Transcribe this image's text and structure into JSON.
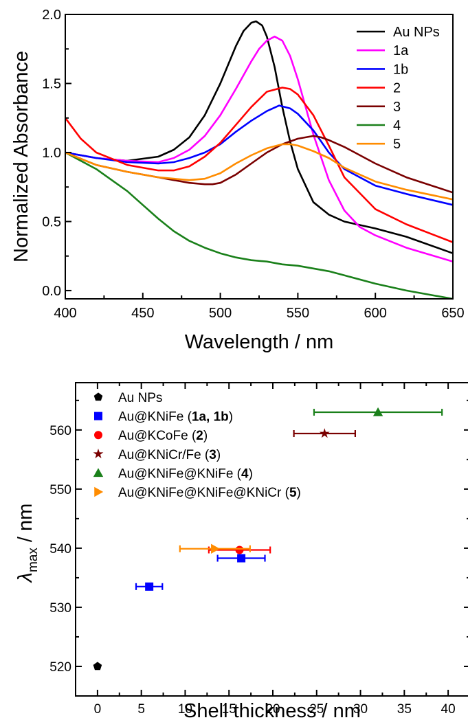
{
  "chart_data": [
    {
      "type": "line",
      "xlabel": "Wavelength / nm",
      "ylabel": "Normalized Absorbance",
      "xlim": [
        400,
        650
      ],
      "ylim": [
        -0.06,
        2.0
      ],
      "xticks": [
        "400",
        "450",
        "500",
        "550",
        "600",
        "650"
      ],
      "yticks": [
        "0.0",
        "0.5",
        "1.0",
        "1.5",
        "2.0"
      ],
      "legend_position": "top-right",
      "series": [
        {
          "name": "Au NPs",
          "color": "#000000",
          "x": [
            400,
            420,
            440,
            460,
            470,
            480,
            490,
            500,
            510,
            515,
            520,
            523,
            527,
            530,
            535,
            540,
            545,
            550,
            560,
            570,
            580,
            600,
            620,
            650
          ],
          "y": [
            1.0,
            0.96,
            0.94,
            0.97,
            1.02,
            1.11,
            1.27,
            1.5,
            1.77,
            1.88,
            1.94,
            1.95,
            1.92,
            1.84,
            1.62,
            1.33,
            1.08,
            0.88,
            0.64,
            0.55,
            0.5,
            0.45,
            0.39,
            0.27
          ]
        },
        {
          "name": "1a",
          "color": "#ff00ff",
          "x": [
            400,
            420,
            440,
            460,
            470,
            480,
            490,
            500,
            510,
            520,
            525,
            530,
            535,
            540,
            545,
            550,
            560,
            570,
            580,
            590,
            600,
            620,
            650
          ],
          "y": [
            1.0,
            0.96,
            0.94,
            0.93,
            0.96,
            1.02,
            1.12,
            1.27,
            1.46,
            1.66,
            1.75,
            1.81,
            1.84,
            1.81,
            1.7,
            1.53,
            1.13,
            0.8,
            0.58,
            0.46,
            0.4,
            0.31,
            0.21
          ]
        },
        {
          "name": "1b",
          "color": "#0000ff",
          "x": [
            400,
            420,
            440,
            460,
            470,
            480,
            490,
            500,
            510,
            520,
            530,
            538,
            545,
            550,
            560,
            570,
            580,
            600,
            620,
            650
          ],
          "y": [
            1.0,
            0.96,
            0.93,
            0.92,
            0.93,
            0.96,
            1.0,
            1.06,
            1.15,
            1.23,
            1.3,
            1.34,
            1.32,
            1.28,
            1.16,
            1.0,
            0.88,
            0.76,
            0.7,
            0.62
          ]
        },
        {
          "name": "2",
          "color": "#ff0000",
          "x": [
            400,
            410,
            420,
            440,
            460,
            470,
            480,
            490,
            500,
            510,
            520,
            530,
            540,
            545,
            550,
            560,
            570,
            580,
            600,
            620,
            650
          ],
          "y": [
            1.25,
            1.1,
            1.0,
            0.91,
            0.87,
            0.87,
            0.9,
            0.97,
            1.07,
            1.2,
            1.33,
            1.44,
            1.47,
            1.46,
            1.42,
            1.27,
            1.05,
            0.82,
            0.59,
            0.48,
            0.35
          ]
        },
        {
          "name": "3",
          "color": "#7a0000",
          "x": [
            400,
            420,
            440,
            460,
            480,
            490,
            495,
            500,
            510,
            520,
            530,
            540,
            550,
            560,
            565,
            570,
            580,
            600,
            620,
            650
          ],
          "y": [
            1.0,
            0.91,
            0.86,
            0.82,
            0.78,
            0.77,
            0.77,
            0.78,
            0.84,
            0.92,
            1.0,
            1.06,
            1.1,
            1.12,
            1.11,
            1.09,
            1.04,
            0.92,
            0.82,
            0.71
          ]
        },
        {
          "name": "4",
          "color": "#1a801a",
          "x": [
            400,
            420,
            440,
            450,
            460,
            470,
            480,
            490,
            500,
            510,
            520,
            530,
            540,
            550,
            560,
            570,
            580,
            600,
            620,
            650
          ],
          "y": [
            1.0,
            0.88,
            0.72,
            0.62,
            0.52,
            0.43,
            0.36,
            0.31,
            0.27,
            0.24,
            0.22,
            0.21,
            0.19,
            0.18,
            0.16,
            0.14,
            0.11,
            0.05,
            0.0,
            -0.06
          ]
        },
        {
          "name": "5",
          "color": "#ff8c00",
          "x": [
            400,
            420,
            440,
            460,
            480,
            490,
            500,
            510,
            520,
            530,
            540,
            545,
            550,
            560,
            570,
            580,
            600,
            620,
            650
          ],
          "y": [
            1.0,
            0.91,
            0.86,
            0.82,
            0.8,
            0.81,
            0.85,
            0.92,
            0.98,
            1.03,
            1.06,
            1.06,
            1.05,
            1.01,
            0.96,
            0.89,
            0.79,
            0.73,
            0.66
          ]
        }
      ]
    },
    {
      "type": "scatter",
      "xlabel": "Shell thickness / nm",
      "ylabel_main": "λ",
      "ylabel_sub": "max",
      "ylabel_suffix": " / nm",
      "xlim": [
        -2.5,
        42.5
      ],
      "ylim": [
        515,
        568
      ],
      "xticks": [
        "0",
        "5",
        "10",
        "15",
        "20",
        "25",
        "30",
        "35",
        "40"
      ],
      "yticks": [
        "520",
        "530",
        "540",
        "550",
        "560"
      ],
      "legend_position": "top-left",
      "legend": [
        {
          "name": "Au NPs",
          "bold": "",
          "post": "",
          "marker": "pentagon",
          "color": "#000000"
        },
        {
          "name": "Au@KNiFe (",
          "bold": "1a, 1b",
          "post": ")",
          "marker": "square",
          "color": "#0000ff"
        },
        {
          "name": "Au@KCoFe (",
          "bold": "2",
          "post": ")",
          "marker": "circle",
          "color": "#ff0000"
        },
        {
          "name": "Au@KNiCr/Fe (",
          "bold": "3",
          "post": ")",
          "marker": "star",
          "color": "#7a0000"
        },
        {
          "name": "Au@KNiFe@KNiFe (",
          "bold": "4",
          "post": ")",
          "marker": "triangle-up",
          "color": "#1a801a"
        },
        {
          "name": "Au@KNiFe@KNiFe@KNiCr (",
          "bold": "5",
          "post": ")",
          "marker": "triangle-right",
          "color": "#ff8c00"
        }
      ],
      "points": [
        {
          "series": "Au NPs",
          "x": 0,
          "y": 520,
          "xerr": 0,
          "marker": "pentagon",
          "color": "#000000"
        },
        {
          "series": "1a",
          "x": 5.9,
          "y": 533.5,
          "xerr": 1.5,
          "marker": "square",
          "color": "#0000ff"
        },
        {
          "series": "1b",
          "x": 16.4,
          "y": 538.3,
          "xerr": 2.7,
          "marker": "square",
          "color": "#0000ff"
        },
        {
          "series": "2",
          "x": 16.2,
          "y": 539.7,
          "xerr": 3.5,
          "marker": "circle",
          "color": "#ff0000"
        },
        {
          "series": "5",
          "x": 13.4,
          "y": 539.9,
          "xerr": 4.0,
          "marker": "triangle-right",
          "color": "#ff8c00"
        },
        {
          "series": "3",
          "x": 25.9,
          "y": 559.4,
          "xerr": 3.5,
          "marker": "star",
          "color": "#7a0000"
        },
        {
          "series": "4",
          "x": 32.0,
          "y": 563.0,
          "xerr": 7.3,
          "marker": "triangle-up",
          "color": "#1a801a"
        }
      ]
    }
  ]
}
